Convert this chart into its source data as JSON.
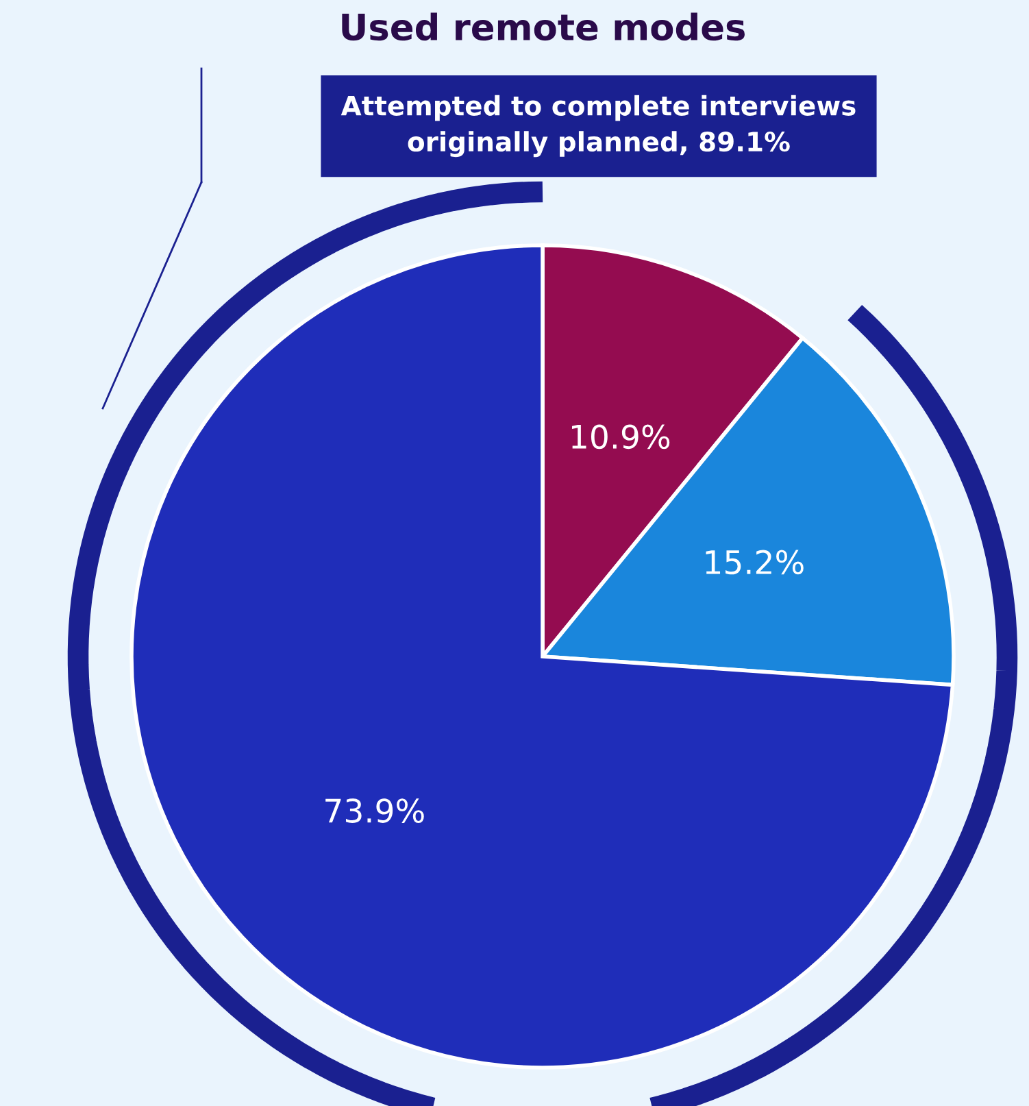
{
  "chart_data": {
    "type": "pie",
    "title": "Used remote modes",
    "categories": [
      null,
      null,
      null
    ],
    "values": [
      10.9,
      15.2,
      73.9
    ],
    "colors": [
      "#940c50",
      "#1a86dc",
      "#1f2db9"
    ],
    "value_labels": [
      "10.9%",
      "15.2%",
      "73.9%"
    ],
    "annotations": [
      "Attempted to complete interviews\noriginally planned, 89.1%"
    ]
  }
}
